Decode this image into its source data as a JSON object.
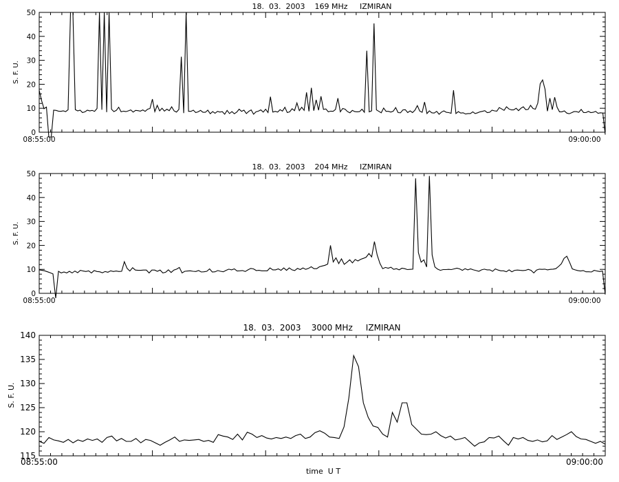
{
  "chart_data": [
    {
      "type": "line",
      "title": "18.  03.  2003    169 MHz     IZMIRAN",
      "xlabel": "",
      "ylabel": "S. F. U.",
      "xlim": [
        "08:55:00",
        "09:00:00"
      ],
      "x_tick_labels": [
        "08:55:00",
        "09:00:00"
      ],
      "ylim": [
        0,
        50
      ],
      "y_ticks": [
        0,
        10,
        20,
        30,
        40,
        50
      ],
      "grid": false,
      "series": [
        {
          "values": [
            17.5,
            13.2,
            9.8,
            10.5,
            -3,
            -3,
            9.2,
            9.1,
            8.8,
            8.7,
            8.9,
            8.6,
            9.4,
            50,
            50,
            9.4,
            8.9,
            9.2,
            8.2,
            8.5,
            9.2,
            8.9,
            9.1,
            8.7,
            9.9,
            50,
            9.4,
            50,
            8.4,
            50,
            9.6,
            8.6,
            9.1,
            10.4,
            8.5,
            8.8,
            8.6,
            8.9,
            9.3,
            8.4,
            9.1,
            9.0,
            8.8,
            9.3,
            8.7,
            9.6,
            9.9,
            13.8,
            8.6,
            11.2,
            8.9,
            10.0,
            8.8,
            9.6,
            9.0,
            10.6,
            8.9,
            8.4,
            9.5,
            31.5,
            8.0,
            50,
            8.7,
            8.7,
            9.2,
            8.2,
            8.5,
            9.1,
            8.3,
            8.3,
            9.2,
            7.7,
            8.6,
            7.9,
            8.7,
            8.4,
            8.6,
            7.5,
            9.1,
            7.8,
            8.6,
            7.7,
            8.4,
            9.6,
            8.7,
            9.2,
            7.8,
            8.7,
            9.3,
            7.5,
            8.5,
            8.8,
            9.3,
            8.4,
            9.6,
            8.2,
            14.8,
            8.4,
            8.7,
            8.4,
            9.4,
            8.8,
            10.4,
            8.2,
            8.5,
            9.8,
            9.0,
            12.2,
            9.0,
            10.4,
            9.1,
            16.6,
            8.7,
            18.5,
            9.0,
            13.5,
            9.2,
            15.0,
            9.5,
            9.7,
            8.5,
            8.8,
            8.7,
            9.5,
            14.2,
            8.5,
            9.9,
            9.6,
            8.6,
            8.1,
            9.1,
            8.6,
            8.5,
            8.6,
            9.6,
            8.3,
            34,
            8.5,
            8.9,
            45.4,
            9.3,
            8.7,
            8.1,
            10.1,
            8.7,
            8.7,
            8.4,
            8.8,
            10.3,
            8.2,
            8.1,
            9.3,
            9.4,
            8.2,
            8.9,
            8.2,
            9.2,
            11.1,
            8.8,
            8.3,
            12.6,
            7.8,
            8.9,
            8.1,
            8.0,
            8.7,
            7.5,
            8.4,
            8.9,
            8.3,
            8.2,
            7.9,
            17.5,
            7.8,
            8.6,
            8.0,
            8.1,
            7.6,
            7.8,
            7.8,
            8.5,
            7.8,
            8.1,
            8.5,
            8.7,
            9.0,
            8.2,
            8.3,
            9.2,
            8.9,
            8.8,
            10.3,
            9.7,
            9.1,
            10.6,
            9.7,
            9.3,
            9.3,
            10.0,
            9.0,
            10.0,
            10.6,
            9.4,
            9.5,
            11.2,
            9.9,
            9.6,
            12.1,
            20.2,
            21.8,
            18.0,
            8.8,
            14.2,
            9.4,
            14.6,
            10.4,
            8.5,
            8.5,
            8.9,
            8.0,
            7.7,
            8.1,
            8.6,
            8.6,
            8.3,
            9.5,
            8.2,
            8.2,
            8.7,
            8.2,
            8.3,
            8.7,
            7.9,
            8.1,
            8.0,
            -1
          ]
        }
      ]
    },
    {
      "type": "line",
      "title": "18.  03.  2003    204 MHz     IZMIRAN",
      "xlabel": "",
      "ylabel": "S. F. U.",
      "xlim": [
        "08:55:00",
        "09:00:00"
      ],
      "x_tick_labels": [
        "08:55:00",
        "09:00:00"
      ],
      "ylim": [
        0,
        50
      ],
      "y_ticks": [
        0,
        10,
        20,
        30,
        40,
        50
      ],
      "grid": false,
      "series": [
        {
          "values": [
            9.8,
            9.6,
            9.4,
            9.0,
            8.6,
            8.1,
            -2,
            9.2,
            8.5,
            8.9,
            8.5,
            9.2,
            8.5,
            9.3,
            8.6,
            9.6,
            9.3,
            9.1,
            9.4,
            8.5,
            9.5,
            9.1,
            9.0,
            8.6,
            9.1,
            8.8,
            9.4,
            9.1,
            9.3,
            9.1,
            9.2,
            13.2,
            10.4,
            9.3,
            10.7,
            9.7,
            9.6,
            9.6,
            9.7,
            9.7,
            8.5,
            9.7,
            9.7,
            9.2,
            9.7,
            8.5,
            8.8,
            9.8,
            8.7,
            9.7,
            10.1,
            10.8,
            8.5,
            9.2,
            9.3,
            9.4,
            9.2,
            9.1,
            9.5,
            8.9,
            9.0,
            9.2,
            10.2,
            8.9,
            9.0,
            9.5,
            9.2,
            9.0,
            9.6,
            10.1,
            9.8,
            10.2,
            9.3,
            9.4,
            9.5,
            9.1,
            9.8,
            10.4,
            10.2,
            9.5,
            9.6,
            9.4,
            9.4,
            9.4,
            10.6,
            9.8,
            9.8,
            10.2,
            9.6,
            10.6,
            9.6,
            10.6,
            9.8,
            9.5,
            10.4,
            9.9,
            10.6,
            10.0,
            10.4,
            11.1,
            10.3,
            10.3,
            11.1,
            11.4,
            11.7,
            12.2,
            20.0,
            13.1,
            14.8,
            12.4,
            14.4,
            12.1,
            13.0,
            14.0,
            12.7,
            14.1,
            13.5,
            14.2,
            14.6,
            15.1,
            16.6,
            15.2,
            21.6,
            16.0,
            12.5,
            10.3,
            10.8,
            10.5,
            10.9,
            10.0,
            10.3,
            9.8,
            10.5,
            10.3,
            9.9,
            10.0,
            10.1,
            48,
            17,
            13,
            14,
            11,
            49,
            16,
            11,
            10.1,
            9.6,
            9.9,
            9.9,
            10.0,
            9.9,
            10.2,
            10.5,
            10.2,
            9.6,
            10.3,
            9.8,
            10.2,
            9.8,
            9.5,
            9.2,
            9.8,
            10.1,
            9.8,
            9.8,
            9.2,
            10.2,
            9.7,
            9.4,
            9.4,
            9.0,
            9.8,
            9.0,
            9.6,
            9.7,
            9.6,
            9.5,
            9.6,
            10.0,
            9.6,
            8.5,
            9.7,
            10.1,
            10.0,
            10.1,
            9.8,
            10.0,
            10.1,
            10.3,
            11.2,
            12.3,
            14.6,
            15.5,
            13.0,
            10.2,
            9.8,
            9.5,
            9.3,
            9.5,
            9.0,
            9.0,
            8.9,
            9.6,
            9.3,
            9.1,
            9.3,
            -0.5
          ]
        }
      ]
    },
    {
      "type": "line",
      "title": "18.  03.  2003    3000 MHz     IZMIRAN",
      "xlabel": "time  U T",
      "ylabel": "S. F. U.",
      "xlim": [
        "08:55:00",
        "09:00:00"
      ],
      "x_tick_labels": [
        "08:55:00",
        "09:00:00"
      ],
      "ylim": [
        115,
        140
      ],
      "y_ticks": [
        115,
        120,
        125,
        130,
        135,
        140
      ],
      "grid": false,
      "series": [
        {
          "values": [
            118.0,
            117.6,
            118.8,
            118.3,
            118.1,
            117.8,
            118.4,
            117.7,
            118.3,
            118.0,
            118.5,
            118.2,
            118.5,
            117.8,
            118.8,
            119.1,
            118.1,
            118.6,
            118.0,
            118.0,
            118.6,
            117.7,
            118.4,
            118.2,
            117.7,
            117.2,
            117.8,
            118.3,
            118.9,
            118.0,
            118.3,
            118.2,
            118.3,
            118.4,
            118.0,
            118.2,
            117.8,
            119.4,
            119.1,
            118.9,
            118.4,
            119.5,
            118.3,
            119.9,
            119.5,
            118.8,
            119.2,
            118.7,
            118.5,
            118.8,
            118.6,
            118.9,
            118.6,
            119.2,
            119.5,
            118.6,
            118.9,
            119.8,
            120.2,
            119.7,
            118.9,
            118.8,
            118.6,
            121.0,
            127.0,
            135.8,
            133.5,
            126.0,
            123.0,
            121.2,
            120.9,
            119.5,
            118.9,
            124.0,
            122.0,
            126.0,
            126.0,
            121.5,
            120.5,
            119.5,
            119.4,
            119.5,
            120.0,
            119.2,
            118.7,
            119.1,
            118.3,
            118.5,
            118.8,
            117.9,
            117.0,
            117.7,
            117.9,
            118.8,
            118.7,
            119.1,
            118.1,
            117.2,
            118.8,
            118.5,
            118.8,
            118.2,
            118.0,
            118.3,
            117.9,
            118.1,
            119.2,
            118.4,
            118.9,
            119.4,
            120.0,
            119.0,
            118.5,
            118.4,
            118.0,
            117.6,
            118.0,
            117.4
          ]
        }
      ]
    }
  ]
}
